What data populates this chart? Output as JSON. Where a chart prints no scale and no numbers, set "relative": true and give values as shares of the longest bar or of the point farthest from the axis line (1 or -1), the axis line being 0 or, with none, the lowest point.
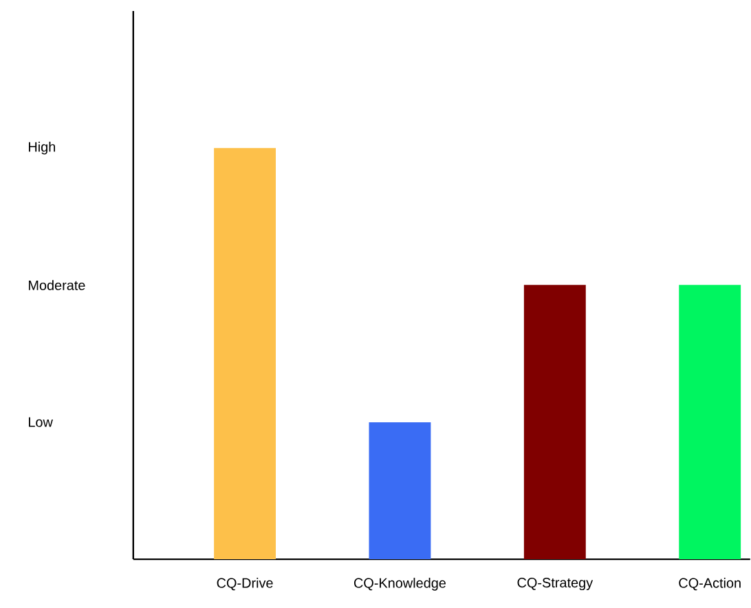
{
  "chart_data": {
    "type": "bar",
    "relative": true,
    "categories": [
      "CQ-Drive",
      "CQ-Knowledge",
      "CQ-Strategy",
      "CQ-Action"
    ],
    "values": [
      1,
      0.333,
      0.667,
      0.667
    ],
    "colors": [
      "#fdc04a",
      "#3a6cf4",
      "#800000",
      "#00f560"
    ],
    "annotations": [
      "Low",
      "Moderate",
      "High"
    ],
    "grid": false
  }
}
